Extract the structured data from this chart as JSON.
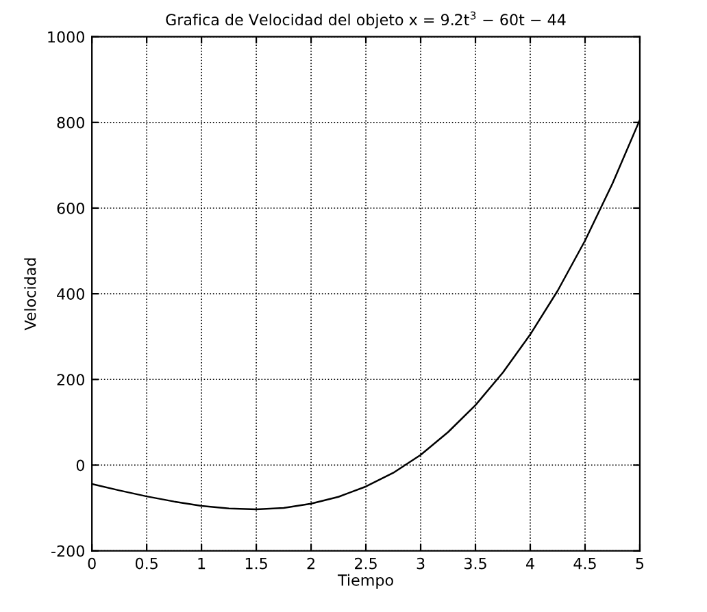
{
  "chart_data": {
    "type": "line",
    "title": "Grafica de Velocidad del objeto x = 9.2t$^{3}$ − 60t − 44",
    "xlabel": "Tiempo",
    "ylabel": "Velocidad",
    "x": [
      0,
      0.25,
      0.5,
      0.75,
      1,
      1.25,
      1.5,
      1.75,
      2,
      2.25,
      2.5,
      2.75,
      3,
      3.25,
      3.5,
      3.75,
      4,
      4.25,
      4.5,
      4.75,
      5
    ],
    "series": [
      {
        "color": "#000000",
        "values": [
          -44,
          -59,
          -73,
          -85,
          -95,
          -101,
          -103,
          -100,
          -90,
          -74,
          -50,
          -18,
          24,
          77,
          140,
          216,
          305,
          407,
          524,
          657,
          806
        ]
      }
    ],
    "xlim": [
      0,
      5
    ],
    "ylim": [
      -200,
      1000
    ],
    "xticks": [
      0,
      0.5,
      1,
      1.5,
      2,
      2.5,
      3,
      3.5,
      4,
      4.5,
      5
    ],
    "yticks": [
      -200,
      0,
      200,
      400,
      600,
      800,
      1000
    ],
    "grid": true,
    "line_style": "solid",
    "marker": "none",
    "legend": false
  }
}
